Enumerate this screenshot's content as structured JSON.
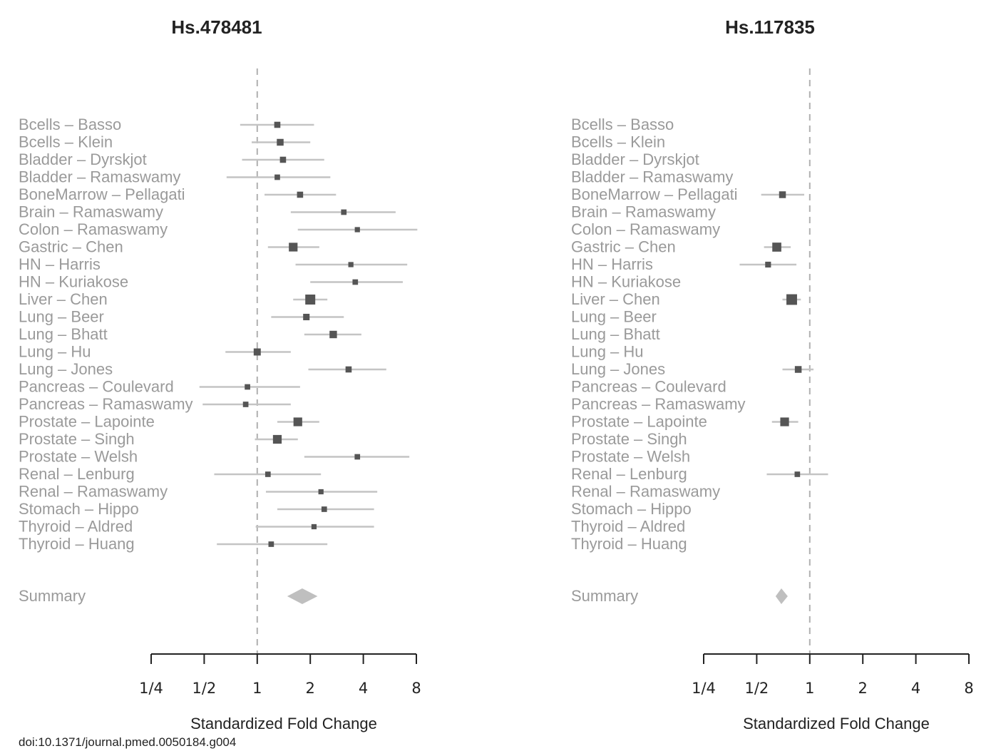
{
  "footer": {
    "doi": "doi:10.1371/journal.pmed.0050184.g004"
  },
  "chart_data": [
    {
      "type": "forest",
      "title": "Hs.478481",
      "xlabel": "Standardized Fold Change",
      "xscale": "log2",
      "xlim": [
        0.25,
        8
      ],
      "xticks": [
        0.25,
        0.5,
        1,
        2,
        4,
        8
      ],
      "xtick_labels": [
        "1/4",
        "1/2",
        "1",
        "2",
        "4",
        "8"
      ],
      "reference_line": 1,
      "rows": [
        {
          "label": "Bcells – Basso",
          "est": 1.3,
          "lo": 0.8,
          "hi": 2.1,
          "weight": 0.4
        },
        {
          "label": "Bcells – Klein",
          "est": 1.35,
          "lo": 0.93,
          "hi": 2.0,
          "weight": 0.5
        },
        {
          "label": "Bladder – Dyrskjot",
          "est": 1.4,
          "lo": 0.82,
          "hi": 2.4,
          "weight": 0.4
        },
        {
          "label": "Bladder – Ramaswamy",
          "est": 1.3,
          "lo": 0.67,
          "hi": 2.6,
          "weight": 0.3
        },
        {
          "label": "BoneMarrow – Pellagati",
          "est": 1.75,
          "lo": 1.1,
          "hi": 2.8,
          "weight": 0.4
        },
        {
          "label": "Brain – Ramaswamy",
          "est": 3.1,
          "lo": 1.55,
          "hi": 6.1,
          "weight": 0.3
        },
        {
          "label": "Colon – Ramaswamy",
          "est": 3.7,
          "lo": 1.7,
          "hi": 8.1,
          "weight": 0.25
        },
        {
          "label": "Gastric – Chen",
          "est": 1.6,
          "lo": 1.15,
          "hi": 2.25,
          "weight": 0.8
        },
        {
          "label": "HN – Harris",
          "est": 3.4,
          "lo": 1.65,
          "hi": 7.1,
          "weight": 0.25
        },
        {
          "label": "HN – Kuriakose",
          "est": 3.6,
          "lo": 2.0,
          "hi": 6.7,
          "weight": 0.3
        },
        {
          "label": "Liver – Chen",
          "est": 2.0,
          "lo": 1.6,
          "hi": 2.5,
          "weight": 1.0
        },
        {
          "label": "Lung – Beer",
          "est": 1.9,
          "lo": 1.2,
          "hi": 3.1,
          "weight": 0.45
        },
        {
          "label": "Lung – Bhatt",
          "est": 2.7,
          "lo": 1.85,
          "hi": 3.9,
          "weight": 0.6
        },
        {
          "label": "Lung – Hu",
          "est": 1.0,
          "lo": 0.66,
          "hi": 1.55,
          "weight": 0.55
        },
        {
          "label": "Lung – Jones",
          "est": 3.3,
          "lo": 1.95,
          "hi": 5.4,
          "weight": 0.4
        },
        {
          "label": "Pancreas – Coulevard",
          "est": 0.88,
          "lo": 0.47,
          "hi": 1.75,
          "weight": 0.3
        },
        {
          "label": "Pancreas – Ramaswamy",
          "est": 0.86,
          "lo": 0.49,
          "hi": 1.55,
          "weight": 0.3
        },
        {
          "label": "Prostate – Lapointe",
          "est": 1.7,
          "lo": 1.3,
          "hi": 2.25,
          "weight": 0.8
        },
        {
          "label": "Prostate – Singh",
          "est": 1.3,
          "lo": 0.97,
          "hi": 1.7,
          "weight": 0.8
        },
        {
          "label": "Prostate – Welsh",
          "est": 3.7,
          "lo": 1.85,
          "hi": 7.3,
          "weight": 0.3
        },
        {
          "label": "Renal – Lenburg",
          "est": 1.15,
          "lo": 0.57,
          "hi": 2.3,
          "weight": 0.3
        },
        {
          "label": "Renal – Ramaswamy",
          "est": 2.3,
          "lo": 1.12,
          "hi": 4.8,
          "weight": 0.25
        },
        {
          "label": "Stomach – Hippo",
          "est": 2.4,
          "lo": 1.3,
          "hi": 4.6,
          "weight": 0.3
        },
        {
          "label": "Thyroid – Aldred",
          "est": 2.1,
          "lo": 0.98,
          "hi": 4.6,
          "weight": 0.25
        },
        {
          "label": "Thyroid – Huang",
          "est": 1.2,
          "lo": 0.59,
          "hi": 2.5,
          "weight": 0.3
        }
      ],
      "summary": {
        "label": "Summary",
        "est": 1.8,
        "lo": 1.48,
        "hi": 2.2
      }
    },
    {
      "type": "forest",
      "title": "Hs.117835",
      "xlabel": "Standardized Fold Change",
      "xscale": "log2",
      "xlim": [
        0.25,
        8
      ],
      "xticks": [
        0.25,
        0.5,
        1,
        2,
        4,
        8
      ],
      "xtick_labels": [
        "1/4",
        "1/2",
        "1",
        "2",
        "4",
        "8"
      ],
      "reference_line": 1,
      "rows": [
        {
          "label": "Bcells – Basso"
        },
        {
          "label": "Bcells – Klein"
        },
        {
          "label": "Bladder – Dyrskjot"
        },
        {
          "label": "Bladder – Ramaswamy"
        },
        {
          "label": "BoneMarrow – Pellagati",
          "est": 0.7,
          "lo": 0.53,
          "hi": 0.93,
          "weight": 0.5
        },
        {
          "label": "Brain – Ramaswamy"
        },
        {
          "label": "Colon – Ramaswamy"
        },
        {
          "label": "Gastric – Chen",
          "est": 0.65,
          "lo": 0.55,
          "hi": 0.78,
          "weight": 0.85
        },
        {
          "label": "HN – Harris",
          "est": 0.58,
          "lo": 0.4,
          "hi": 0.84,
          "weight": 0.35
        },
        {
          "label": "HN – Kuriakose"
        },
        {
          "label": "Liver – Chen",
          "est": 0.79,
          "lo": 0.7,
          "hi": 0.89,
          "weight": 1.1
        },
        {
          "label": "Lung – Beer"
        },
        {
          "label": "Lung – Bhatt"
        },
        {
          "label": "Lung – Hu"
        },
        {
          "label": "Lung – Jones",
          "est": 0.86,
          "lo": 0.7,
          "hi": 1.05,
          "weight": 0.5
        },
        {
          "label": "Pancreas – Coulevard"
        },
        {
          "label": "Pancreas – Ramaswamy"
        },
        {
          "label": "Prostate – Lapointe",
          "est": 0.72,
          "lo": 0.61,
          "hi": 0.86,
          "weight": 0.8
        },
        {
          "label": "Prostate – Singh"
        },
        {
          "label": "Prostate – Welsh"
        },
        {
          "label": "Renal – Lenburg",
          "est": 0.85,
          "lo": 0.57,
          "hi": 1.27,
          "weight": 0.3
        },
        {
          "label": "Renal – Ramaswamy"
        },
        {
          "label": "Stomach – Hippo"
        },
        {
          "label": "Thyroid – Aldred"
        },
        {
          "label": "Thyroid – Huang"
        }
      ],
      "summary": {
        "label": "Summary",
        "est": 0.69,
        "lo": 0.64,
        "hi": 0.75
      }
    }
  ]
}
